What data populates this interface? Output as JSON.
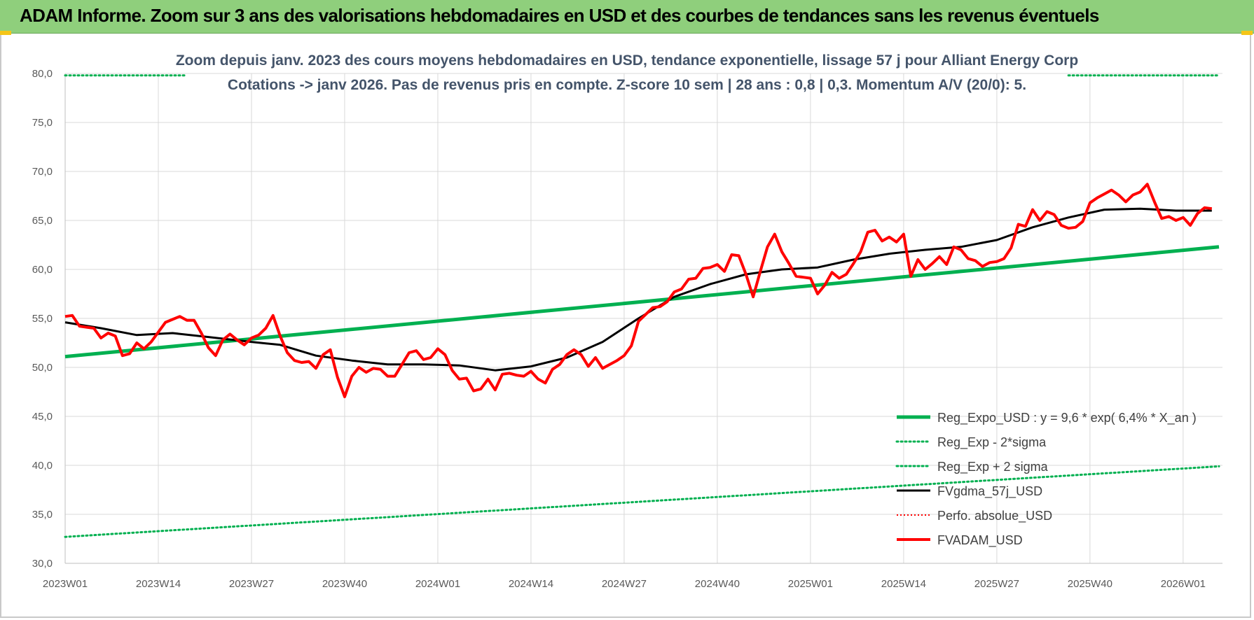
{
  "banner": {
    "title": "ADAM Informe. Zoom sur 3 ans des valorisations hebdomadaires en USD et des courbes de tendances sans les revenus éventuels"
  },
  "chart_data": {
    "type": "line",
    "subtitle_line1": "Zoom depuis janv. 2023 des cours moyens hebdomadaires en USD, tendance exponentielle, lissage 57 j pour Alliant Energy Corp",
    "subtitle_line2": "Cotations -> janv 2026. Pas de revenus pris en compte. Z-score 10 sem | 28 ans : 0,8 | 0,3. Momentum A/V (20/0): 5.",
    "ylim": [
      30,
      80
    ],
    "yticks": [
      "30,0",
      "35,0",
      "40,0",
      "45,0",
      "50,0",
      "55,0",
      "60,0",
      "65,0",
      "70,0",
      "75,0",
      "80,0"
    ],
    "xticks": [
      "2023W01",
      "2023W14",
      "2023W27",
      "2023W40",
      "2024W01",
      "2024W14",
      "2024W27",
      "2024W40",
      "2025W01",
      "2025W14",
      "2025W27",
      "2025W40",
      "2026W01"
    ],
    "xtick_week_index": [
      0,
      13,
      26,
      39,
      52,
      65,
      78,
      91,
      104,
      117,
      130,
      143,
      156
    ],
    "xlim": [
      0,
      161
    ],
    "colors": {
      "reg": "#00b050",
      "black": "#000000",
      "red": "#ff0000",
      "grid": "#d9d9d9"
    },
    "series": [
      {
        "name": "Reg_Expo_USD : y = 9,6 * exp( 6,4% * X_an )",
        "style": "thick-green",
        "x": [
          0,
          161
        ],
        "values": [
          51.1,
          62.3
        ]
      },
      {
        "name": "Reg_Exp - 2*sigma",
        "style": "dotted-green",
        "x": [
          0,
          161
        ],
        "values": [
          32.7,
          39.9
        ]
      },
      {
        "name": "Reg_Exp + 2 sigma",
        "style": "dotted-green",
        "visible_ranges": [
          [
            0,
            17
          ],
          [
            140,
            161
          ]
        ],
        "x": [
          0,
          161
        ],
        "values": [
          79.8,
          79.8
        ]
      },
      {
        "name": "FVgdma_57j_USD",
        "style": "black",
        "x": [
          0,
          5,
          10,
          15,
          20,
          26,
          30,
          35,
          40,
          45,
          50,
          55,
          60,
          65,
          70,
          75,
          80,
          85,
          90,
          95,
          100,
          105,
          110,
          115,
          120,
          125,
          130,
          135,
          140,
          145,
          150,
          155,
          160
        ],
        "values": [
          54.6,
          54.0,
          53.3,
          53.5,
          53.1,
          52.6,
          52.3,
          51.2,
          50.7,
          50.3,
          50.3,
          50.2,
          49.7,
          50.1,
          51.0,
          52.6,
          55.0,
          57.2,
          58.5,
          59.5,
          60.0,
          60.2,
          61.0,
          61.6,
          62.0,
          62.3,
          63.0,
          64.3,
          65.3,
          66.1,
          66.2,
          66.0,
          66.0
        ]
      },
      {
        "name": "Perfo. absolue_USD",
        "style": "dotted-red",
        "x": [],
        "values": []
      },
      {
        "name": "FVADAM_USD",
        "style": "red",
        "x": [
          0,
          1,
          2,
          3,
          4,
          5,
          6,
          7,
          8,
          9,
          10,
          11,
          12,
          13,
          14,
          15,
          16,
          17,
          18,
          19,
          20,
          21,
          22,
          23,
          24,
          25,
          26,
          27,
          28,
          29,
          30,
          31,
          32,
          33,
          34,
          35,
          36,
          37,
          38,
          39,
          40,
          41,
          42,
          43,
          44,
          45,
          46,
          47,
          48,
          49,
          50,
          51,
          52,
          53,
          54,
          55,
          56,
          57,
          58,
          59,
          60,
          61,
          62,
          63,
          64,
          65,
          66,
          67,
          68,
          69,
          70,
          71,
          72,
          73,
          74,
          75,
          76,
          77,
          78,
          79,
          80,
          81,
          82,
          83,
          84,
          85,
          86,
          87,
          88,
          89,
          90,
          91,
          92,
          93,
          94,
          95,
          96,
          97,
          98,
          99,
          100,
          101,
          102,
          103,
          104,
          105,
          106,
          107,
          108,
          109,
          110,
          111,
          112,
          113,
          114,
          115,
          116,
          117,
          118,
          119,
          120,
          121,
          122,
          123,
          124,
          125,
          126,
          127,
          128,
          129,
          130,
          131,
          132,
          133,
          134,
          135,
          136,
          137,
          138,
          139,
          140,
          141,
          142,
          143,
          144,
          145,
          146,
          147,
          148,
          149,
          150,
          151,
          152,
          153,
          154,
          155,
          156,
          157,
          158,
          159,
          160
        ],
        "values": [
          55.2,
          55.3,
          54.2,
          54.1,
          54.0,
          53.0,
          53.5,
          53.2,
          51.2,
          51.4,
          52.5,
          51.9,
          52.6,
          53.6,
          54.6,
          54.9,
          55.2,
          54.8,
          54.8,
          53.5,
          52.0,
          51.2,
          52.8,
          53.4,
          52.8,
          52.3,
          53.0,
          53.3,
          54.0,
          55.3,
          53.2,
          51.5,
          50.7,
          50.5,
          50.6,
          49.9,
          51.3,
          51.8,
          49.0,
          47.0,
          49.1,
          50.0,
          49.5,
          49.9,
          49.8,
          49.1,
          49.1,
          50.3,
          51.5,
          51.7,
          50.8,
          51.0,
          51.9,
          51.3,
          49.7,
          48.8,
          48.9,
          47.6,
          47.8,
          48.8,
          47.7,
          49.3,
          49.4,
          49.2,
          49.1,
          49.6,
          48.8,
          48.4,
          49.8,
          50.3,
          51.3,
          51.8,
          51.3,
          50.1,
          51.0,
          49.9,
          50.3,
          50.7,
          51.2,
          52.2,
          54.7,
          55.4,
          56.1,
          56.2,
          56.7,
          57.7,
          58.0,
          59.0,
          59.1,
          60.1,
          60.2,
          60.5,
          59.8,
          61.5,
          61.4,
          59.5,
          57.2,
          59.8,
          62.3,
          63.6,
          61.8,
          60.6,
          59.3,
          59.2,
          59.1,
          57.5,
          58.4,
          59.7,
          59.1,
          59.5,
          60.6,
          61.8,
          63.8,
          64.0,
          62.9,
          63.3,
          62.8,
          63.6,
          59.3,
          61.0,
          60.0,
          60.6,
          61.3,
          60.5,
          62.3,
          62.0,
          61.1,
          60.9,
          60.3,
          60.7,
          60.8,
          61.1,
          62.2,
          64.6,
          64.4,
          66.1,
          65.0,
          65.9,
          65.6,
          64.5,
          64.2,
          64.3,
          64.9,
          66.8,
          67.3,
          67.7,
          68.1,
          67.6,
          66.9,
          67.6,
          67.9,
          68.7,
          66.9,
          65.2,
          65.4,
          65.0,
          65.3,
          64.5,
          65.7,
          66.3,
          66.2
        ]
      }
    ],
    "legend": [
      {
        "label": "Reg_Expo_USD : y = 9,6 * exp( 6,4% * X_an )",
        "style": "thick-green"
      },
      {
        "label": "Reg_Exp - 2*sigma",
        "style": "dotted-green"
      },
      {
        "label": "Reg_Exp + 2 sigma",
        "style": "dotted-green"
      },
      {
        "label": "FVgdma_57j_USD",
        "style": "black"
      },
      {
        "label": "Perfo. absolue_USD",
        "style": "dotted-red"
      },
      {
        "label": "FVADAM_USD",
        "style": "red"
      }
    ],
    "legend_position": "bottom-right",
    "grid": true
  }
}
